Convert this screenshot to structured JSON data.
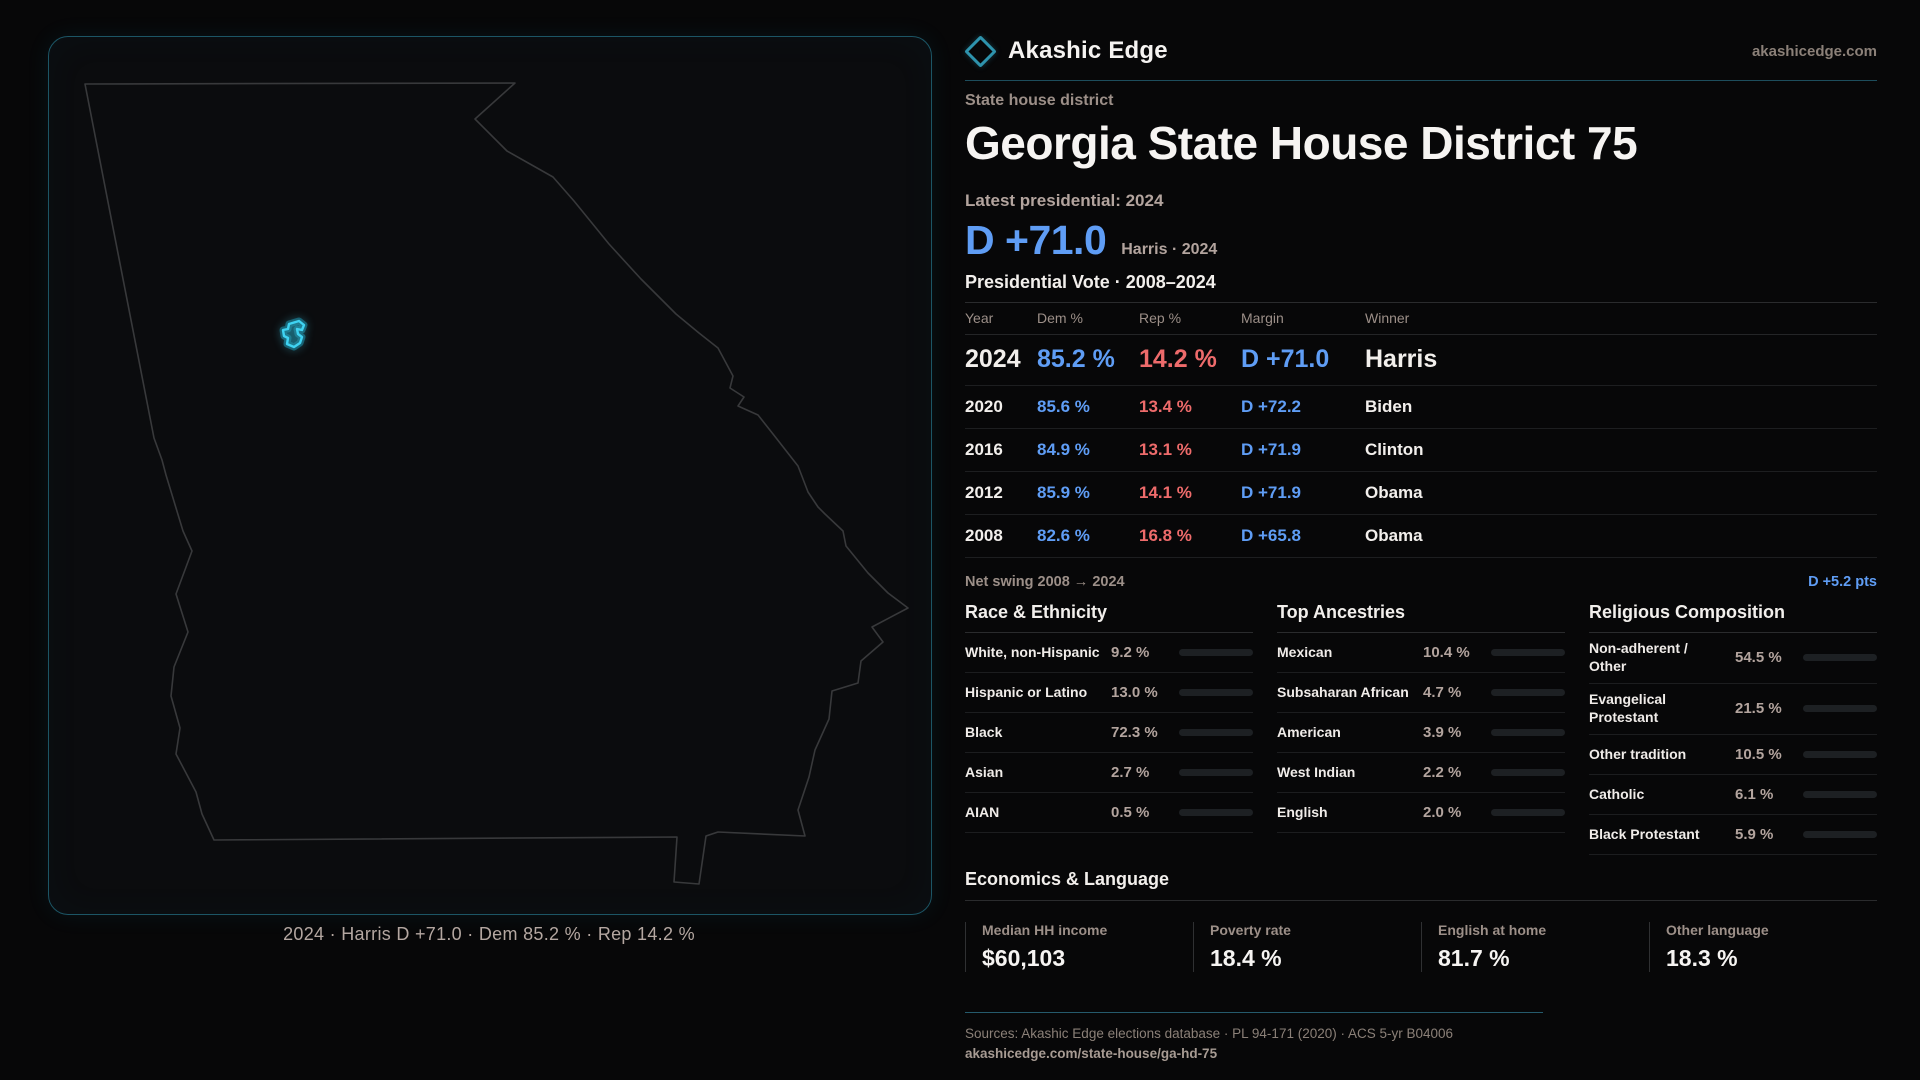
{
  "brand": {
    "name": "Akashic Edge",
    "domain": "akashicedge.com"
  },
  "page": {
    "kicker": "State house district",
    "title": "Georgia State House District 75",
    "latest_label": "Latest presidential: 2024",
    "headline_margin": "D +71.0",
    "headline_sub": "Harris · 2024",
    "table_title": "Presidential Vote · 2008–2024"
  },
  "map": {
    "caption": "2024 · Harris D +71.0 · Dem 85.2 % · Rep 14.2 %"
  },
  "vote_table": {
    "columns": [
      "Year",
      "Dem %",
      "Rep %",
      "Margin",
      "Winner"
    ],
    "rows": [
      {
        "year": "2024",
        "dem": "85.2 %",
        "rep": "14.2 %",
        "margin": "D +71.0",
        "winner": "Harris",
        "featured": true
      },
      {
        "year": "2020",
        "dem": "85.6 %",
        "rep": "13.4 %",
        "margin": "D +72.2",
        "winner": "Biden"
      },
      {
        "year": "2016",
        "dem": "84.9 %",
        "rep": "13.1 %",
        "margin": "D +71.9",
        "winner": "Clinton"
      },
      {
        "year": "2012",
        "dem": "85.9 %",
        "rep": "14.1 %",
        "margin": "D +71.9",
        "winner": "Obama"
      },
      {
        "year": "2008",
        "dem": "82.6 %",
        "rep": "16.8 %",
        "margin": "D +65.8",
        "winner": "Obama"
      }
    ],
    "net_swing_label": "Net swing 2008 → 2024",
    "net_swing_value": "D +5.2 pts"
  },
  "demographics": [
    {
      "title": "Race & Ethnicity",
      "items": [
        {
          "label": "White, non-Hispanic",
          "value": "9.2 %",
          "pct": 9.2,
          "color": "#8fa0c6"
        },
        {
          "label": "Hispanic or Latino",
          "value": "13.0 %",
          "pct": 13.0,
          "color": "#e2a43e"
        },
        {
          "label": "Black",
          "value": "72.3 %",
          "pct": 72.3,
          "color": "#9584ea"
        },
        {
          "label": "Asian",
          "value": "2.7 %",
          "pct": 2.7,
          "color": "#23a87b"
        },
        {
          "label": "AIAN",
          "value": "0.5 %",
          "pct": 0.5,
          "color": "#8f969e"
        }
      ]
    },
    {
      "title": "Top Ancestries",
      "items": [
        {
          "label": "Mexican",
          "value": "10.4 %",
          "pct": 10.4,
          "color": "#e2a43e"
        },
        {
          "label": "Subsaharan African",
          "value": "4.7 %",
          "pct": 4.7,
          "color": "#9a86f2"
        },
        {
          "label": "American",
          "value": "3.9 %",
          "pct": 3.9,
          "color": "#9aa9bd"
        },
        {
          "label": "West Indian",
          "value": "2.2 %",
          "pct": 2.2,
          "color": "#8f7ff0"
        },
        {
          "label": "English",
          "value": "2.0 %",
          "pct": 2.0,
          "color": "#9097a1"
        }
      ]
    },
    {
      "title": "Religious Composition",
      "items": [
        {
          "label": "Non-adherent / Other",
          "value": "54.5 %",
          "pct": 54.5,
          "color": "#66788d"
        },
        {
          "label": "Evangelical Protestant",
          "value": "21.5 %",
          "pct": 21.5,
          "color": "#e87a78"
        },
        {
          "label": "Other tradition",
          "value": "10.5 %",
          "pct": 10.5,
          "color": "#93a6bb"
        },
        {
          "label": "Catholic",
          "value": "6.1 %",
          "pct": 6.1,
          "color": "#e5c23c"
        },
        {
          "label": "Black Protestant",
          "value": "5.9 %",
          "pct": 5.9,
          "color": "#977ff0"
        }
      ]
    }
  ],
  "economics": {
    "title": "Economics & Language",
    "stats": [
      {
        "label": "Median HH income",
        "value": "$60,103"
      },
      {
        "label": "Poverty rate",
        "value": "18.4 %"
      },
      {
        "label": "English at home",
        "value": "81.7 %"
      },
      {
        "label": "Other language",
        "value": "18.3 %"
      }
    ]
  },
  "footer": {
    "sources": "Sources: Akashic Edge elections database · PL 94-171 (2020) · ACS 5-yr B04006",
    "permalink": "akashicedge.com/state-house/ga-hd-75"
  },
  "colors": {
    "dem_blue": "#5f9df5",
    "rep_red": "#ee6b6b",
    "accent_cyan": "#3fd3f2"
  }
}
